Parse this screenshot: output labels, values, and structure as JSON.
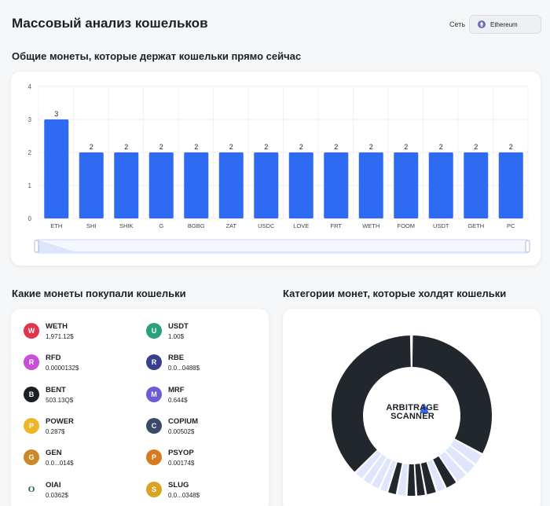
{
  "header": {
    "title": "Массовый анализ кошельков",
    "network_label": "Сеть",
    "network_value": "Ethereum"
  },
  "sections": {
    "common_coins": "Общие монеты, которые держат кошельки прямо сейчас",
    "bought_coins": "Какие монеты покупали кошельки",
    "categories": "Категории монет, которые холдят кошельки"
  },
  "chart_data": {
    "type": "bar",
    "categories": [
      "ETH",
      "SHI",
      "SHIK",
      "G",
      "BGBG",
      "ZAT",
      "USDC",
      "LOVE",
      "FRT",
      "WETH",
      "FOOM",
      "USDT",
      "GETH",
      "PC"
    ],
    "values": [
      3,
      2,
      2,
      2,
      2,
      2,
      2,
      2,
      2,
      2,
      2,
      2,
      2,
      2
    ],
    "ylim": [
      0,
      4
    ],
    "yticks": [
      "0",
      "1",
      "2",
      "3",
      "4"
    ],
    "bar_color": "#2f6bf2",
    "grid": true
  },
  "coins": [
    {
      "name": "WETH",
      "price": "1,971.12$",
      "icon": "weth-icon",
      "color": "#e3344e"
    },
    {
      "name": "USDT",
      "price": "1.00$",
      "icon": "usdt-icon",
      "color": "#26a17b"
    },
    {
      "name": "RFD",
      "price": "0.0000132$",
      "icon": "rfd-icon",
      "color": "#c94fd8"
    },
    {
      "name": "RBE",
      "price": "0.0...0488$",
      "icon": "rbe-icon",
      "color": "#3a3f8c"
    },
    {
      "name": "BENT",
      "price": "503.13Q$",
      "icon": "bent-icon",
      "color": "#1b1f26"
    },
    {
      "name": "MRF",
      "price": "0.644$",
      "icon": "mrf-icon",
      "color": "#6b5bd6"
    },
    {
      "name": "POWER",
      "price": "0.287$",
      "icon": "power-icon",
      "color": "#f0b429"
    },
    {
      "name": "COPIUM",
      "price": "0.00502$",
      "icon": "copium-icon",
      "color": "#3b4a6b"
    },
    {
      "name": "GEN",
      "price": "0.0...014$",
      "icon": "gen-icon",
      "color": "#c98a2a"
    },
    {
      "name": "PSYOP",
      "price": "0.00174$",
      "icon": "psyop-icon",
      "color": "#d87a1f"
    },
    {
      "name": "OIAI",
      "price": "0.0362$",
      "icon": "oiai-icon",
      "color": "#ffffff"
    },
    {
      "name": "SLUG",
      "price": "0.0...0348$",
      "icon": "slug-icon",
      "color": "#d9a423"
    }
  ],
  "donut": {
    "logo_line1": "ARBITRAGE",
    "logo_line2": "SCANNER",
    "dark_color": "#22272e",
    "light_color": "#dfe6fb"
  }
}
